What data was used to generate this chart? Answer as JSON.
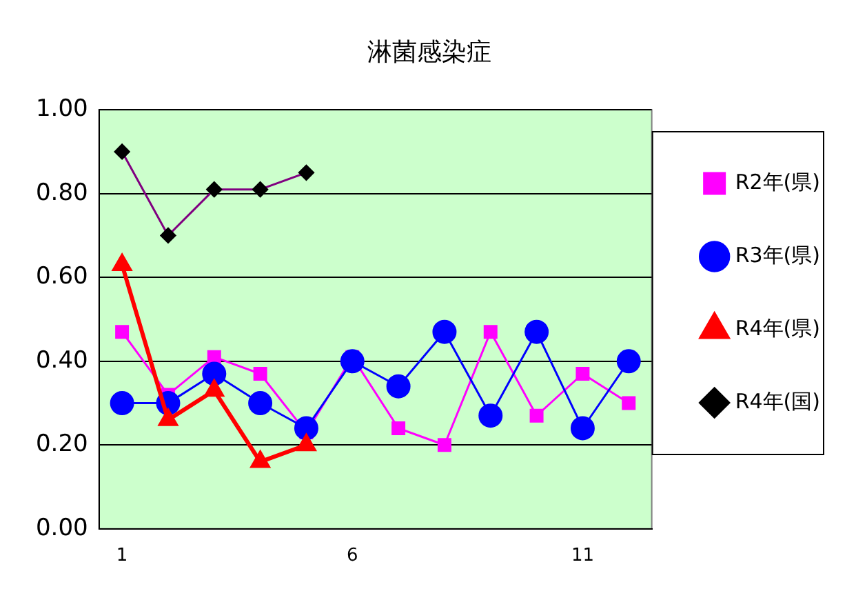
{
  "chart_data": {
    "type": "line",
    "title": "淋菌感染症",
    "categories": [
      "1",
      null,
      null,
      null,
      null,
      "6",
      null,
      null,
      null,
      null,
      "11",
      null
    ],
    "ylim": [
      0,
      1
    ],
    "yticks": [
      {
        "value": 0,
        "label": "0.00"
      },
      {
        "value": 0.2,
        "label": "0.20"
      },
      {
        "value": 0.4,
        "label": "0.40"
      },
      {
        "value": 0.6,
        "label": "0.60"
      },
      {
        "value": 0.8,
        "label": "0.80"
      },
      {
        "value": 1,
        "label": "1.00"
      }
    ],
    "grid": "y",
    "legend": "right",
    "series": [
      {
        "name": "R2年(県)",
        "color": "#ff00ff",
        "marker": "square",
        "values": [
          0.47,
          0.32,
          0.41,
          0.37,
          0.23,
          0.41,
          0.24,
          0.2,
          0.47,
          0.27,
          0.37,
          0.3
        ]
      },
      {
        "name": "R3年(県)",
        "color": "#0000ff",
        "marker": "circle",
        "values": [
          0.3,
          0.3,
          0.37,
          0.3,
          0.24,
          0.4,
          0.34,
          0.47,
          0.27,
          0.47,
          0.24,
          0.4
        ]
      },
      {
        "name": "R4年(県)",
        "color": "#ff0000",
        "marker": "triangle",
        "values": [
          0.63,
          0.26,
          0.33,
          0.16,
          0.2,
          null,
          null,
          null,
          null,
          null,
          null,
          null
        ]
      },
      {
        "name": "R4年(国)",
        "color": "#800080",
        "marker": "diamond",
        "values": [
          0.9,
          0.7,
          0.81,
          0.81,
          0.85,
          null,
          null,
          null,
          null,
          null,
          null,
          null
        ]
      }
    ]
  }
}
